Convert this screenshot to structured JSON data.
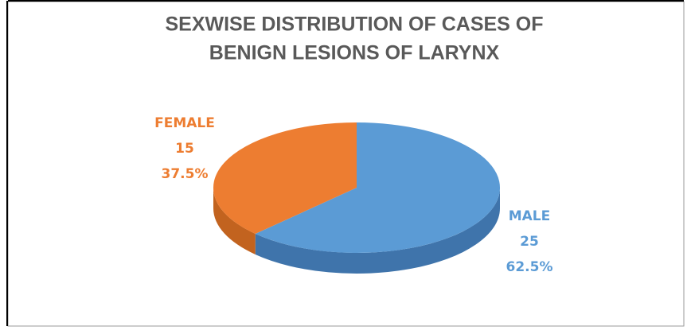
{
  "chart_data": {
    "type": "pie",
    "title": "SEXWISE DISTRIBUTION OF CASES OF BENIGN LESIONS OF LARYNX",
    "title_lines": [
      "SEXWISE DISTRIBUTION OF CASES OF",
      "BENIGN LESIONS OF LARYNX"
    ],
    "categories": [
      "MALE",
      "FEMALE"
    ],
    "values": [
      25,
      15
    ],
    "percentages": [
      62.5,
      37.5
    ],
    "percentage_labels": [
      "62.5%",
      "37.5%"
    ],
    "colors": [
      "#5b9bd5",
      "#ed7d31"
    ],
    "side_colors": [
      "#3f74ab",
      "#c2631f"
    ]
  }
}
